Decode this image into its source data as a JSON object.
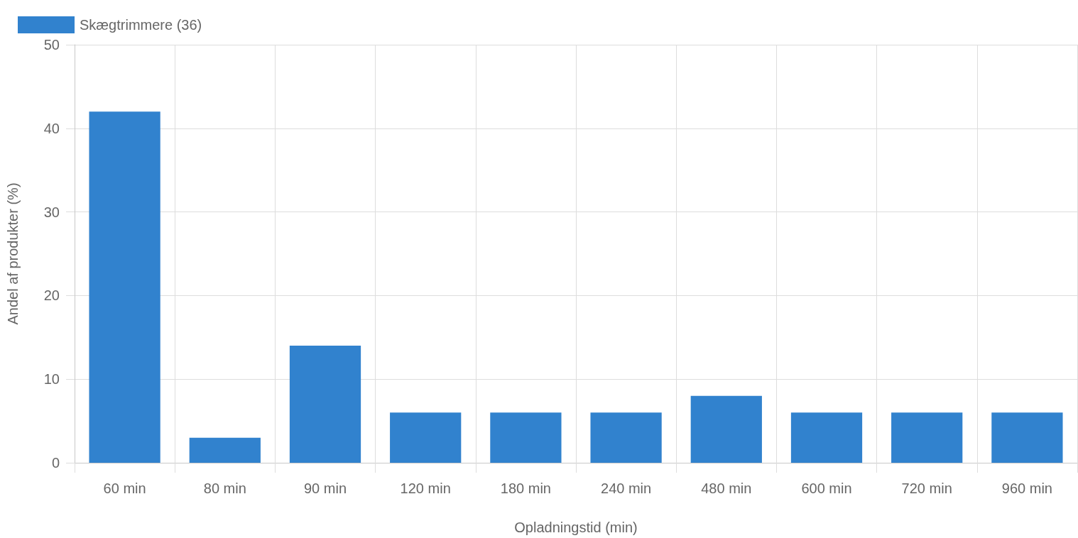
{
  "chart_data": {
    "type": "bar",
    "xlabel": "Opladningstid (min)",
    "ylabel": "Andel af produkter (%)",
    "categories": [
      "60 min",
      "80 min",
      "90 min",
      "120 min",
      "180 min",
      "240 min",
      "480 min",
      "600 min",
      "720 min",
      "960 min"
    ],
    "series": [
      {
        "name": "Skægtrimmere (36)",
        "color": "#3182ce",
        "values": [
          42,
          3,
          14,
          6,
          6,
          6,
          8,
          6,
          6,
          6
        ]
      }
    ],
    "ylim": [
      0,
      50
    ],
    "yticks": [
      0,
      10,
      20,
      30,
      40,
      50
    ],
    "grid": true,
    "legend": "top left"
  }
}
